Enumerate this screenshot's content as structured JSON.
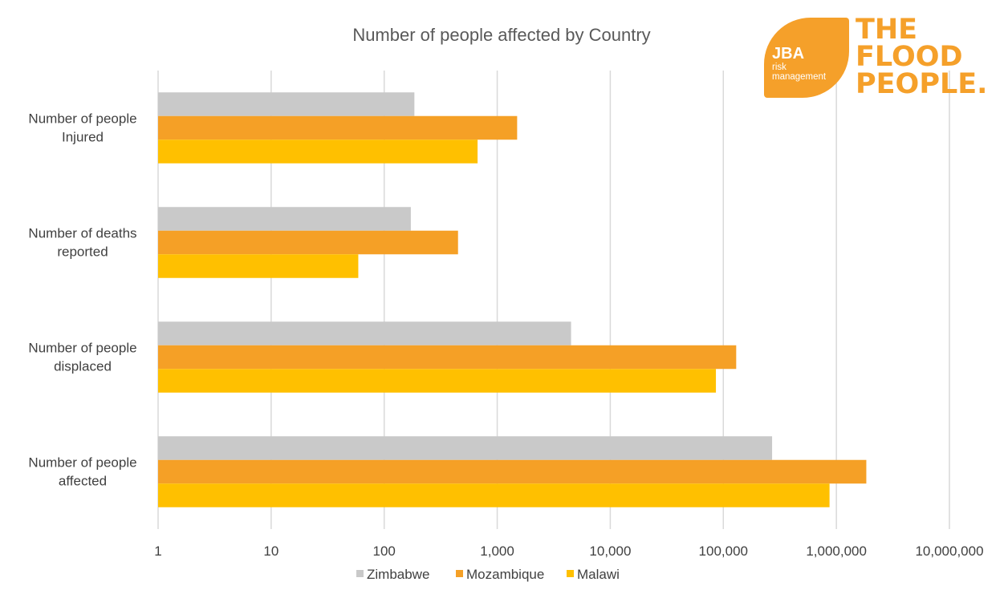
{
  "chart_data": {
    "type": "bar",
    "orientation": "horizontal",
    "title": "Number of people affected by Country",
    "xscale": "log",
    "xlim": [
      1,
      10000000
    ],
    "x_ticks": [
      1,
      10,
      100,
      1000,
      10000,
      100000,
      1000000,
      10000000
    ],
    "x_tick_labels": [
      "1",
      "10",
      "100",
      "1,000",
      "10,000",
      "100,000",
      "1,000,000",
      "10,000,000"
    ],
    "xlabel": "",
    "ylabel": "",
    "grid": "vertical",
    "legend_position": "bottom",
    "categories": [
      [
        "Number of people",
        "Injured"
      ],
      [
        "Number of deaths",
        "reported"
      ],
      [
        "Number of people",
        "displaced"
      ],
      [
        "Number of people",
        "affected"
      ]
    ],
    "series": [
      {
        "name": "Zimbabwe",
        "color": "#C9C9C9",
        "values": [
          185,
          172,
          4500,
          270000
        ]
      },
      {
        "name": "Mozambique",
        "color": "#F5A026",
        "values": [
          1500,
          450,
          130000,
          1840000
        ]
      },
      {
        "name": "Malawi",
        "color": "#FFC000",
        "values": [
          670,
          59,
          86000,
          870000
        ]
      }
    ]
  },
  "logo": {
    "brand": "JBA",
    "sub_line1": "risk",
    "sub_line2": "management",
    "tagline_line1": "THE",
    "tagline_line2": "FLOOD",
    "tagline_line3": "PEOPLE."
  },
  "colors": {
    "gridline": "#D9D9D9",
    "text": "#404040",
    "brand_orange": "#F5A02A"
  }
}
